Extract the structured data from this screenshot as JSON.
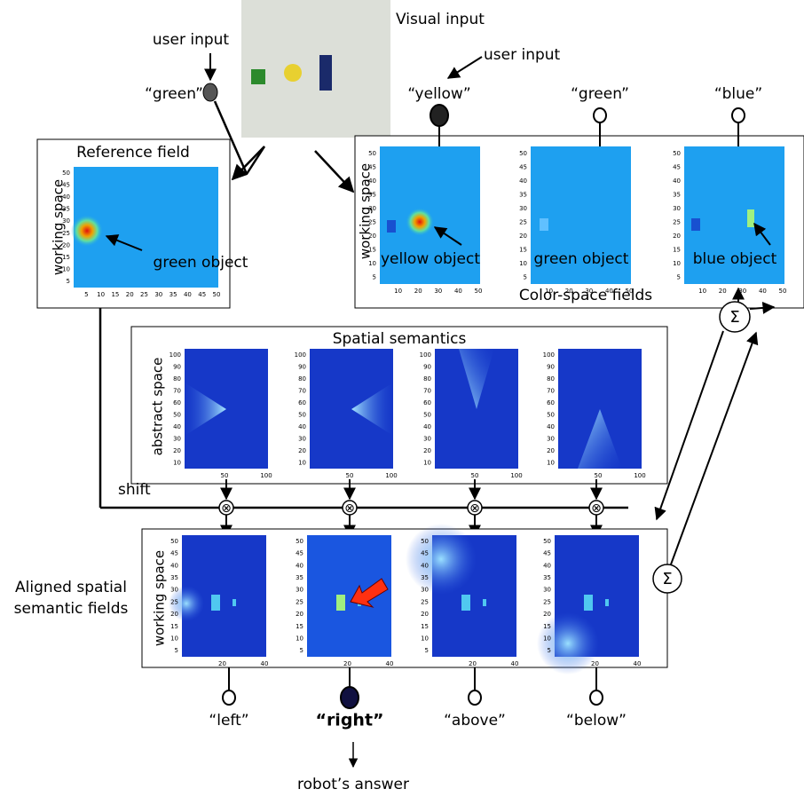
{
  "visual_input": "Visual input",
  "user_inputs": [
    "user input",
    "user input"
  ],
  "left_cue": "“green”",
  "reference_field": {
    "title": "Reference field",
    "ylabel": "working space",
    "annotation": "green object",
    "yticks": [
      50,
      45,
      40,
      35,
      30,
      25,
      20,
      15,
      10,
      5
    ],
    "xticks": [
      5,
      10,
      15,
      20,
      25,
      30,
      35,
      40,
      45,
      50
    ]
  },
  "color_space": {
    "caption": "Color-space fields",
    "ylabel": "working space",
    "fields": [
      {
        "cue": "“yellow”",
        "annotation": "yellow object"
      },
      {
        "cue": "“green”",
        "annotation": "green object"
      },
      {
        "cue": "“blue”",
        "annotation": "blue object"
      }
    ],
    "yticks": [
      50,
      45,
      40,
      35,
      30,
      25,
      20,
      15,
      10,
      5
    ],
    "xticks": [
      10,
      20,
      30,
      40,
      50
    ]
  },
  "spatial_semantics": {
    "title": "Spatial semantics",
    "ylabel": "abstract space",
    "yticks": [
      100,
      90,
      80,
      70,
      60,
      50,
      40,
      30,
      20,
      10
    ],
    "xticks": [
      50,
      100
    ]
  },
  "shift": "shift",
  "aligned": {
    "label": [
      "Aligned spatial",
      "semantic fields"
    ],
    "ylabel": "working space",
    "yticks": [
      50,
      45,
      40,
      35,
      30,
      25,
      20,
      15,
      10,
      5
    ],
    "xticks": [
      20,
      40
    ]
  },
  "answers": [
    "“left”",
    "“right”",
    "“above”",
    "“below”"
  ],
  "robot_answer": "robot’s answer",
  "sum": [
    "Σ",
    "Σ"
  ],
  "multiply": [
    "⊗",
    "⊗",
    "⊗",
    "⊗"
  ]
}
